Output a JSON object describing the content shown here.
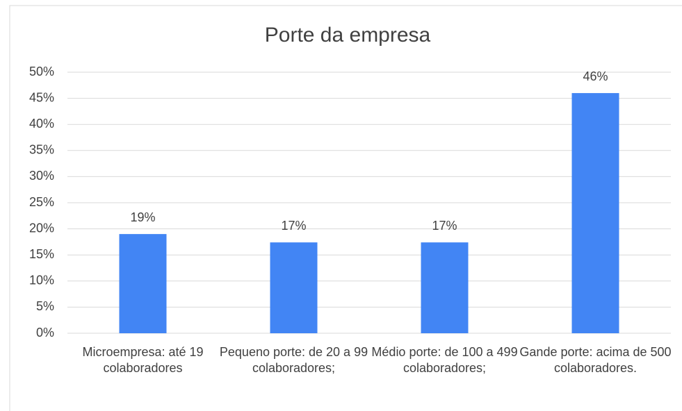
{
  "chart_data": {
    "type": "bar",
    "title": "Porte da empresa",
    "categories": [
      "Microempresa: até 19 colaboradores",
      "Pequeno porte: de 20 a 99 colaboradores;",
      "Médio porte: de 100 a 499 colaboradores;",
      "Gande porte: acima de 500 colaboradores."
    ],
    "values": [
      19,
      17.4,
      17.4,
      46
    ],
    "value_labels": [
      "19%",
      "17%",
      "17%",
      "46%"
    ],
    "color": "#4285f4",
    "ylim": [
      0,
      50
    ],
    "yticks": [
      {
        "value": 0,
        "label": "0%"
      },
      {
        "value": 5,
        "label": "5%"
      },
      {
        "value": 10,
        "label": "10%"
      },
      {
        "value": 15,
        "label": "15%"
      },
      {
        "value": 20,
        "label": "20%"
      },
      {
        "value": 25,
        "label": "25%"
      },
      {
        "value": 30,
        "label": "30%"
      },
      {
        "value": 35,
        "label": "35%"
      },
      {
        "value": 40,
        "label": "40%"
      },
      {
        "value": 45,
        "label": "45%"
      },
      {
        "value": 50,
        "label": "50%"
      }
    ],
    "grid": true
  }
}
